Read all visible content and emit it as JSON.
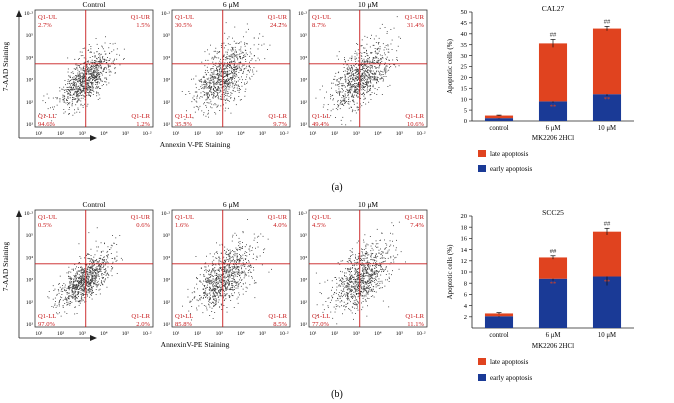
{
  "panels": [
    {
      "panel_label": "(a)",
      "flow": {
        "ylabel": "7-AAD Staining",
        "xlabel": "Annexin V-PE Staining",
        "axis_ticks": [
          "10¹",
          "10²",
          "10³",
          "10⁴",
          "10⁵",
          "10·²"
        ],
        "plots": [
          {
            "title": "Control",
            "quadrants": {
              "UL": {
                "label": "Q1-UL",
                "value": "2.7%"
              },
              "UR": {
                "label": "Q1-UR",
                "value": "1.5%"
              },
              "LL": {
                "label": "Q1-LL",
                "value": "94.6%"
              },
              "LR": {
                "label": "Q1-LR",
                "value": "1.2%"
              }
            }
          },
          {
            "title": "6 μM",
            "quadrants": {
              "UL": {
                "label": "Q1-UL",
                "value": "30.5%"
              },
              "UR": {
                "label": "Q1-UR",
                "value": "24.2%"
              },
              "LL": {
                "label": "Q1-LL",
                "value": "35.5%"
              },
              "LR": {
                "label": "Q1-LR",
                "value": "9.7%"
              }
            }
          },
          {
            "title": "10 μM",
            "quadrants": {
              "UL": {
                "label": "Q1-UL",
                "value": "8.7%"
              },
              "UR": {
                "label": "Q1-UR",
                "value": "31.4%"
              },
              "LL": {
                "label": "Q1-LL",
                "value": "49.4%"
              },
              "LR": {
                "label": "Q1-LR",
                "value": "10.6%"
              }
            }
          }
        ]
      }
    },
    {
      "panel_label": "(b)",
      "flow": {
        "ylabel": "7-AAD Staining",
        "xlabel": "AnnexinV-PE Staining",
        "axis_ticks": [
          "10¹",
          "10²",
          "10³",
          "10⁴",
          "10⁵",
          "10·²"
        ],
        "plots": [
          {
            "title": "Control",
            "quadrants": {
              "UL": {
                "label": "Q1-UL",
                "value": "0.5%"
              },
              "UR": {
                "label": "Q1-UR",
                "value": "0.6%"
              },
              "LL": {
                "label": "Q1-LL",
                "value": "97.0%"
              },
              "LR": {
                "label": "Q1-LR",
                "value": "2.0%"
              }
            }
          },
          {
            "title": "6 μM",
            "quadrants": {
              "UL": {
                "label": "Q1-UL",
                "value": "1.6%"
              },
              "UR": {
                "label": "Q1-UR",
                "value": "4.0%"
              },
              "LL": {
                "label": "Q1-LL",
                "value": "85.8%"
              },
              "LR": {
                "label": "Q1-LR",
                "value": "8.5%"
              }
            }
          },
          {
            "title": "10 μM",
            "quadrants": {
              "UL": {
                "label": "Q1-UL",
                "value": "4.5%"
              },
              "UR": {
                "label": "Q1-UR",
                "value": "7.4%"
              },
              "LL": {
                "label": "Q1-LL",
                "value": "77.0%"
              },
              "LR": {
                "label": "Q1-LR",
                "value": "11.1%"
              }
            }
          }
        ]
      }
    }
  ],
  "chart_data": [
    {
      "type": "bar",
      "stacked": true,
      "title": "CAL27",
      "ylabel": "Apoptotic cells (%)",
      "xlabel": "MK2206 2HCl",
      "categories": [
        "control",
        "6 μM",
        "10 μM"
      ],
      "ylim": [
        0,
        50
      ],
      "yticks": [
        0,
        5,
        10,
        15,
        20,
        25,
        30,
        35,
        40,
        45,
        50
      ],
      "series": [
        {
          "name": "early apoptosis",
          "color": "#1a3a96",
          "values": [
            1.3,
            9.0,
            12.3
          ],
          "errors": [
            0.2,
            0.6,
            0.9
          ],
          "annotations": [
            "",
            "**",
            "**"
          ]
        },
        {
          "name": "late apoptosis",
          "color": "#e0431f",
          "values": [
            1.2,
            26.6,
            30.1
          ],
          "errors": [
            0.2,
            1.8,
            1.0
          ],
          "annotations": [
            "",
            "##",
            "##"
          ]
        }
      ],
      "legend": "bottom"
    },
    {
      "type": "bar",
      "stacked": true,
      "title": "SCC25",
      "ylabel": "Apoptotic cells (%)",
      "xlabel": "MK2206 2HCl",
      "categories": [
        "control",
        "6 μM",
        "10 μM"
      ],
      "ylim": [
        0,
        20
      ],
      "yticks": [
        2,
        4,
        6,
        8,
        10,
        12,
        14,
        16,
        18,
        20
      ],
      "series": [
        {
          "name": "early apoptosis",
          "color": "#1a3a96",
          "values": [
            2.1,
            8.8,
            9.2
          ],
          "errors": [
            0.15,
            0.35,
            1.6
          ],
          "annotations": [
            "",
            "**",
            "**"
          ]
        },
        {
          "name": "late apoptosis",
          "color": "#e0431f",
          "values": [
            0.5,
            3.8,
            8.0
          ],
          "errors": [
            0.15,
            0.3,
            0.6
          ],
          "annotations": [
            "",
            "##",
            "##"
          ]
        }
      ],
      "legend": "bottom"
    }
  ]
}
